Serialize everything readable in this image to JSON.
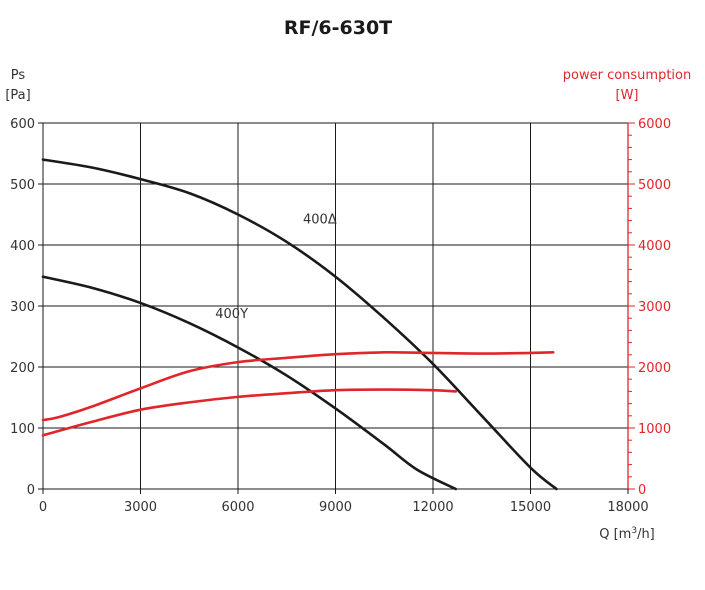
{
  "chart_data": {
    "type": "line",
    "title": "RF/6-630T",
    "xlabel": "Q [m³/h]",
    "ylabel_left": [
      "Ps",
      "[Pa]"
    ],
    "ylabel_right": [
      "power consumption",
      "[W]"
    ],
    "xlim": [
      0,
      18000
    ],
    "ylim_left": [
      0,
      600
    ],
    "ylim_right": [
      0,
      6000
    ],
    "x_ticks": [
      "0",
      "3000",
      "6000",
      "9000",
      "12000",
      "15000",
      "18000"
    ],
    "y_left_ticks": [
      "0",
      "100",
      "200",
      "300",
      "400",
      "500",
      "600"
    ],
    "y_right_ticks": [
      "0",
      "1000",
      "2000",
      "3000",
      "4000",
      "5000",
      "6000"
    ],
    "grid": true,
    "colors": {
      "pressure": "#1a1a1a",
      "power": "#e0262b",
      "axis_right": "#e0262b"
    },
    "series": [
      {
        "name": "400Δ",
        "axis": "left",
        "color": "#1a1a1a",
        "x": [
          0,
          1500,
          3000,
          4500,
          6000,
          7500,
          9000,
          10500,
          12000,
          13500,
          15000,
          15800
        ],
        "y": [
          540,
          527,
          508,
          485,
          450,
          405,
          348,
          280,
          205,
          120,
          35,
          0
        ]
      },
      {
        "name": "400Y",
        "axis": "left",
        "color": "#1a1a1a",
        "x": [
          0,
          1500,
          3000,
          4500,
          6000,
          7500,
          9000,
          10500,
          11500,
          12700
        ],
        "y": [
          348,
          330,
          305,
          272,
          232,
          186,
          132,
          73,
          32,
          0
        ]
      },
      {
        "name": "",
        "axis": "right",
        "color": "#e0262b",
        "x": [
          0,
          500,
          1500,
          3000,
          4500,
          6000,
          7500,
          9000,
          10500,
          12000,
          13500,
          15000,
          15700
        ],
        "y": [
          1130,
          1180,
          1350,
          1650,
          1930,
          2080,
          2150,
          2210,
          2240,
          2230,
          2220,
          2230,
          2240
        ]
      },
      {
        "name": "",
        "axis": "right",
        "color": "#e0262b",
        "x": [
          0,
          1500,
          3000,
          4500,
          6000,
          7500,
          9000,
          10500,
          12000,
          12700
        ],
        "y": [
          880,
          1100,
          1300,
          1420,
          1510,
          1570,
          1620,
          1630,
          1620,
          1600
        ]
      }
    ],
    "annotations": [
      {
        "text": "400Δ",
        "x": 8000,
        "y": 435
      },
      {
        "text": "400Y",
        "x": 5300,
        "y": 280
      }
    ]
  }
}
